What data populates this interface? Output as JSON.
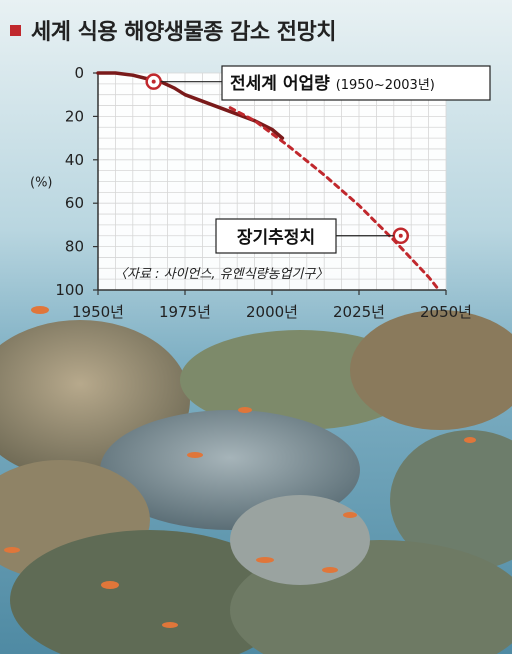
{
  "title": "세계 식용 해양생물종 감소 전망치",
  "colors": {
    "accent": "#c0282d",
    "line": "#7a1a1a",
    "projection": "#c0282d",
    "plot_bg": "#ffffff"
  },
  "chart_data": {
    "type": "line",
    "title": "세계 식용 해양생물종 감소 전망치",
    "ylabel": "(%)",
    "xlabel": "",
    "ylim": [
      0,
      100
    ],
    "y_inverted": true,
    "xlim": [
      1950,
      2050
    ],
    "x_ticks": [
      1950,
      1975,
      2000,
      2025,
      2050
    ],
    "x_tick_labels": [
      "1950년",
      "1975년",
      "2000년",
      "2025년",
      "2050년"
    ],
    "y_ticks": [
      0,
      20,
      40,
      60,
      80,
      100
    ],
    "y_tick_labels": [
      "0",
      "20",
      "40",
      "60",
      "80",
      "100"
    ],
    "grid": true,
    "series": [
      {
        "name": "전세계 어업량",
        "name_suffix": "(1950~2003년)",
        "style": "solid",
        "x": [
          1950,
          1955,
          1960,
          1965,
          1968,
          1972,
          1975,
          1980,
          1985,
          1990,
          1995,
          2000,
          2003
        ],
        "y": [
          0,
          0,
          1,
          3,
          4,
          7,
          10,
          13,
          16,
          19,
          22,
          26,
          30
        ],
        "marker": {
          "x": 1966,
          "y": 4
        }
      },
      {
        "name": "장기추정치",
        "style": "dashed",
        "x": [
          1988,
          1995,
          2005,
          2015,
          2025,
          2035,
          2045,
          2048
        ],
        "y": [
          16,
          22,
          34,
          47,
          61,
          77,
          94,
          100
        ],
        "marker": {
          "x": 2037,
          "y": 75
        }
      }
    ],
    "source": "〈자료 : 사이언스, 유엔식량농업기구〉"
  }
}
